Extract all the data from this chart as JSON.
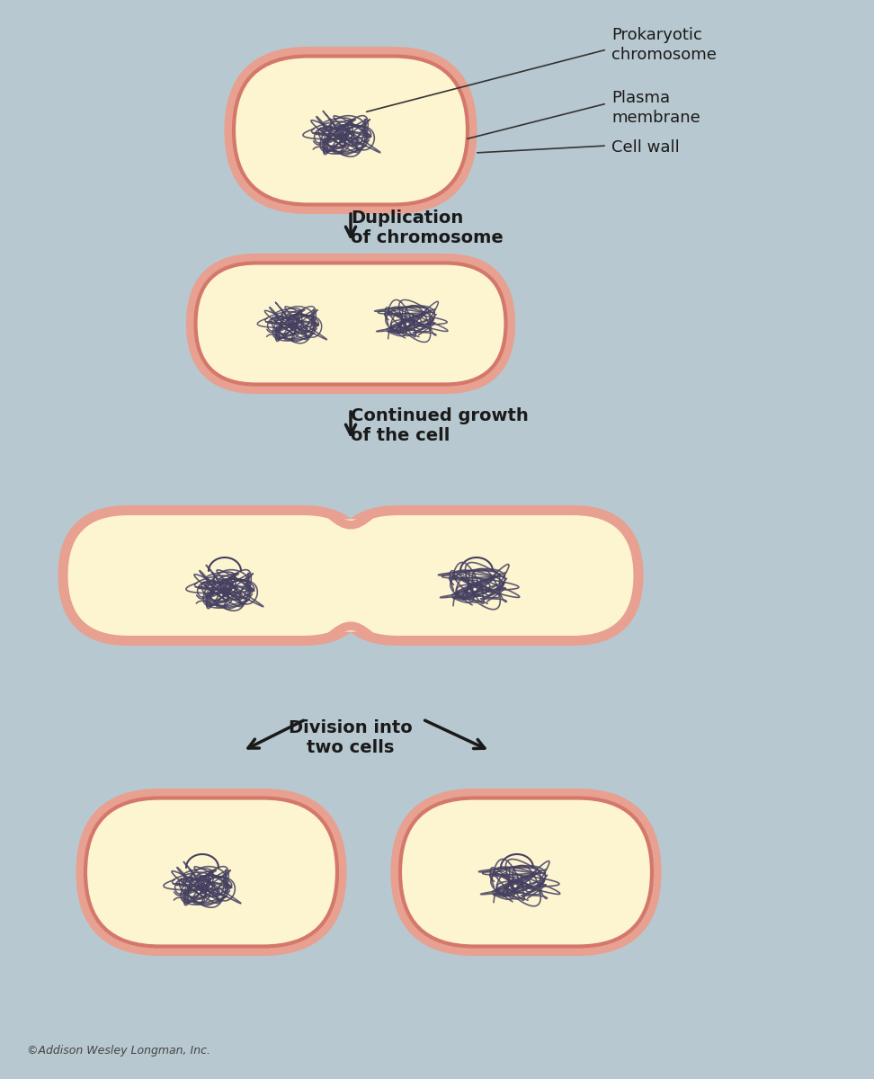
{
  "bg_color": "#b8c8d0",
  "cell_wall_color": "#e8a090",
  "cell_interior_color": "#fdf5d0",
  "chromosome_color": "#454060",
  "arrow_color": "#1a1a1a",
  "text_color": "#1a1a1a",
  "label_color": "#333333",
  "copyright_text": "©Addison Wesley Longman, Inc.",
  "labels": {
    "prokaryotic_chromosome": "Prokaryotic\nchromosome",
    "plasma_membrane": "Plasma\nmembrane",
    "cell_wall": "Cell wall",
    "duplication": "Duplication\nof chromosome",
    "continued_growth": "Continued growth\nof the cell",
    "division": "Division into\ntwo cells"
  }
}
